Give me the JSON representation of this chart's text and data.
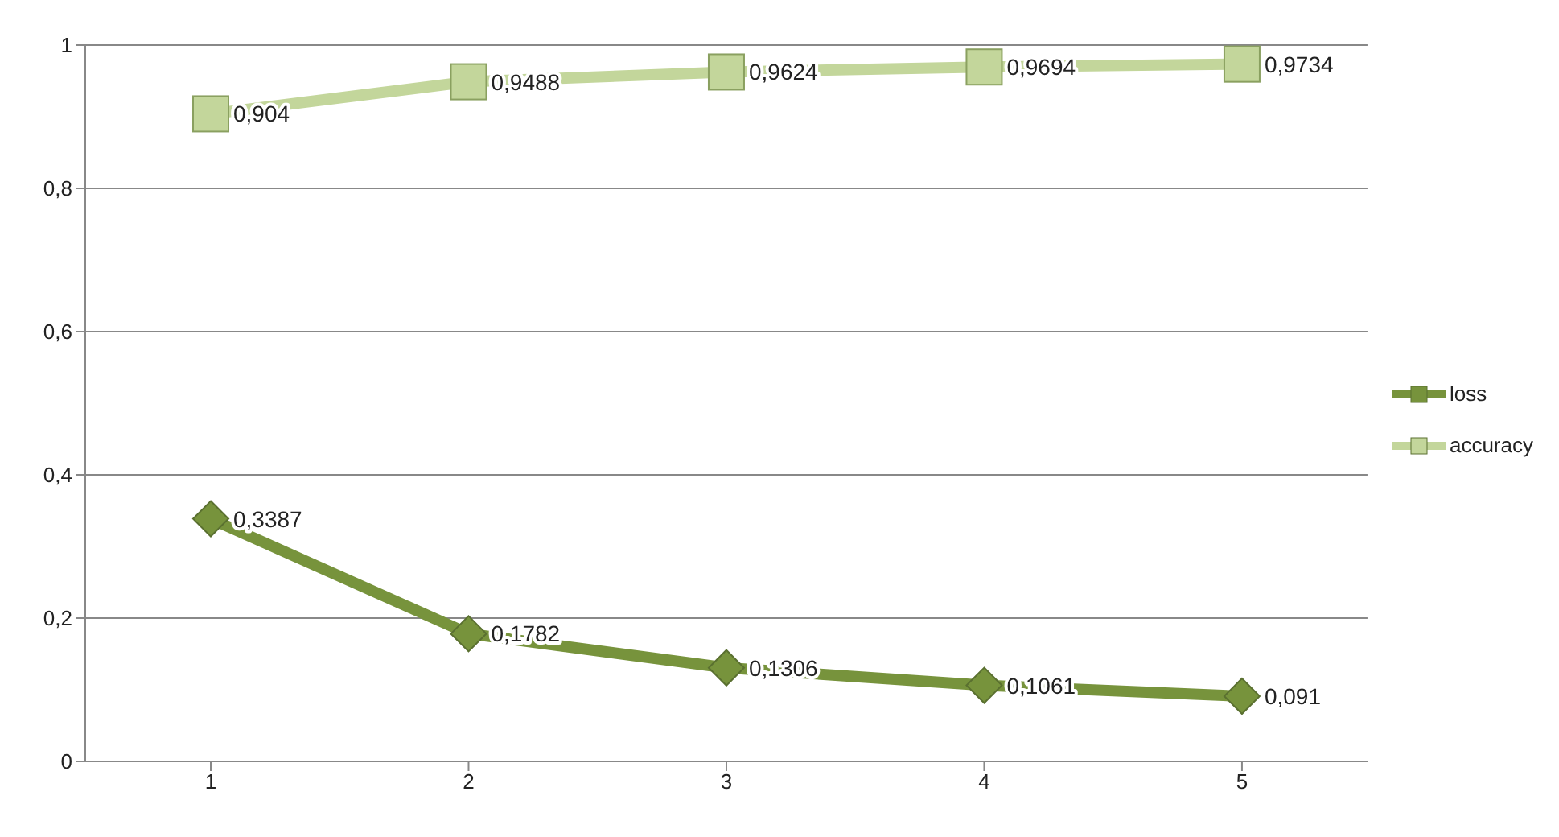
{
  "chart_data": {
    "type": "line",
    "categories": [
      "1",
      "2",
      "3",
      "4",
      "5"
    ],
    "series": [
      {
        "name": "loss",
        "color": "#77933c",
        "marker": "diamond",
        "values": [
          0.3387,
          0.1782,
          0.1306,
          0.1061,
          0.091
        ],
        "value_labels": [
          "0,3387",
          "0,1782",
          "0,1306",
          "0,1061",
          "0,091"
        ]
      },
      {
        "name": "accuracy",
        "color": "#c3d69b",
        "marker": "square",
        "values": [
          0.904,
          0.9488,
          0.9624,
          0.9694,
          0.9734
        ],
        "value_labels": [
          "0,904",
          "0,9488",
          "0,9624",
          "0,9694",
          "0,9734"
        ]
      }
    ],
    "ylim": [
      0,
      1
    ],
    "yticks": [
      0,
      {
        "value": 0.2,
        "label": "0,2"
      },
      {
        "value": 0.4,
        "label": "0,4"
      },
      {
        "value": 0.6,
        "label": "0,6"
      },
      {
        "value": 0.8,
        "label": "0,8"
      },
      1
    ],
    "grid": "y",
    "legend": "right"
  }
}
